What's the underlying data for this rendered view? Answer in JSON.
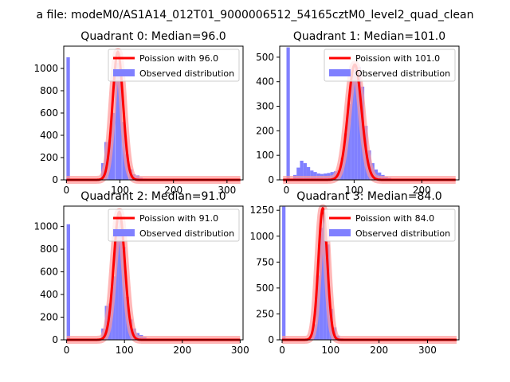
{
  "suptitle": "a file: modeM0/AS1A14_012T01_9000006512_54165cztM0_level2_quad_clean",
  "colors": {
    "hist": "#8080ff",
    "fit": "#ff0000",
    "fit_halo": "#ff9999"
  },
  "chart_data": [
    {
      "type": "bar",
      "title": "Quadrant 0: Median=96.0",
      "legend": [
        "Poission with 96.0",
        "Observed distribution"
      ],
      "legend_position": "top-right",
      "xlim": [
        -5,
        330
      ],
      "ylim": [
        0,
        1200
      ],
      "xticks": [
        0,
        100,
        200,
        300
      ],
      "yticks": [
        0,
        200,
        400,
        600,
        800,
        1000
      ],
      "median": 96,
      "fit_peak": 1150,
      "bin_width": 6.5,
      "bins": [
        [
          0,
          1100
        ],
        [
          65,
          150
        ],
        [
          71,
          340
        ],
        [
          78,
          360
        ],
        [
          84,
          600
        ],
        [
          91,
          1050
        ],
        [
          97,
          1000
        ],
        [
          104,
          520
        ],
        [
          110,
          230
        ],
        [
          117,
          95
        ],
        [
          123,
          50
        ],
        [
          130,
          40
        ],
        [
          136,
          20
        ],
        [
          143,
          12
        ],
        [
          149,
          5
        ]
      ]
    },
    {
      "type": "bar",
      "title": "Quadrant 1: Median=101.0",
      "legend": [
        "Poission with 101.0",
        "Observed distribution"
      ],
      "legend_position": "top-right",
      "xlim": [
        -10,
        255
      ],
      "ylim": [
        0,
        545
      ],
      "xticks": [
        0,
        100,
        200
      ],
      "yticks": [
        0,
        100,
        200,
        300,
        400,
        500
      ],
      "median": 101,
      "fit_peak": 470,
      "bin_width": 5,
      "bins": [
        [
          0,
          540
        ],
        [
          5,
          2
        ],
        [
          10,
          20
        ],
        [
          15,
          50
        ],
        [
          20,
          78
        ],
        [
          25,
          68
        ],
        [
          30,
          52
        ],
        [
          35,
          38
        ],
        [
          40,
          32
        ],
        [
          45,
          26
        ],
        [
          50,
          24
        ],
        [
          55,
          26
        ],
        [
          60,
          28
        ],
        [
          65,
          32
        ],
        [
          70,
          35
        ],
        [
          75,
          40
        ],
        [
          80,
          90
        ],
        [
          85,
          190
        ],
        [
          90,
          310
        ],
        [
          95,
          430
        ],
        [
          100,
          470
        ],
        [
          105,
          460
        ],
        [
          110,
          380
        ],
        [
          115,
          220
        ],
        [
          120,
          120
        ],
        [
          125,
          68
        ],
        [
          130,
          42
        ],
        [
          135,
          30
        ],
        [
          140,
          20
        ],
        [
          145,
          12
        ],
        [
          150,
          8
        ],
        [
          155,
          4
        ]
      ]
    },
    {
      "type": "bar",
      "title": "Quadrant 2: Median=91.0",
      "legend": [
        "Poission with 91.0",
        "Observed distribution"
      ],
      "legend_position": "top-right",
      "xlim": [
        -5,
        305
      ],
      "ylim": [
        0,
        1180
      ],
      "xticks": [
        0,
        100,
        200,
        300
      ],
      "yticks": [
        0,
        200,
        400,
        600,
        800,
        1000
      ],
      "median": 91,
      "fit_peak": 1130,
      "bin_width": 6,
      "bins": [
        [
          0,
          1020
        ],
        [
          60,
          100
        ],
        [
          66,
          300
        ],
        [
          72,
          320
        ],
        [
          78,
          560
        ],
        [
          84,
          1000
        ],
        [
          90,
          1080
        ],
        [
          96,
          820
        ],
        [
          102,
          380
        ],
        [
          108,
          180
        ],
        [
          114,
          100
        ],
        [
          120,
          60
        ],
        [
          126,
          42
        ],
        [
          132,
          25
        ],
        [
          138,
          12
        ],
        [
          144,
          5
        ]
      ]
    },
    {
      "type": "bar",
      "title": "Quadrant 3: Median=84.0",
      "legend": [
        "Poission with 84.0",
        "Observed distribution"
      ],
      "legend_position": "top-right",
      "xlim": [
        -5,
        365
      ],
      "ylim": [
        0,
        1290
      ],
      "xticks": [
        0,
        100,
        200,
        300
      ],
      "yticks": [
        0,
        250,
        500,
        750,
        1000,
        1250
      ],
      "median": 84,
      "fit_peak": 1270,
      "bin_width": 7,
      "bins": [
        [
          0,
          1285
        ],
        [
          56,
          40
        ],
        [
          63,
          150
        ],
        [
          70,
          620
        ],
        [
          77,
          1080
        ],
        [
          84,
          1230
        ],
        [
          91,
          920
        ],
        [
          98,
          300
        ],
        [
          105,
          120
        ],
        [
          112,
          40
        ],
        [
          119,
          15
        ]
      ]
    }
  ]
}
